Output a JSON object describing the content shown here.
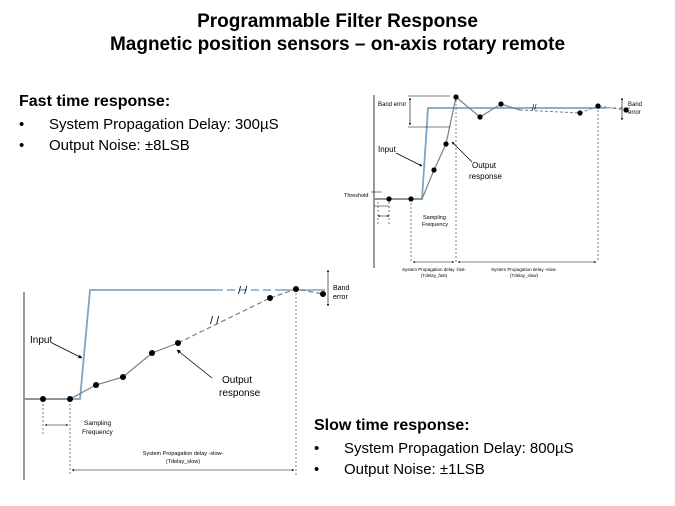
{
  "title_line1": "Programmable Filter Response",
  "title_line2": "Magnetic position sensors – on-axis rotary remote",
  "fast": {
    "heading": "Fast time response:",
    "bullets": [
      "System Propagation Delay: 300µS",
      "Output Noise: ±8LSB"
    ]
  },
  "slow": {
    "heading": "Slow time response:",
    "bullets": [
      "System Propagation Delay: 800µS",
      "Output Noise: ±1LSB"
    ]
  },
  "fast_diagram": {
    "band_error_top": "Band error",
    "band_error_right_1": "Band",
    "band_error_right_2": "error",
    "input": "Input",
    "output_1": "Output",
    "output_2": "response",
    "threshold": "Threshold",
    "sampling_1": "Sampling",
    "sampling_2": "Frequency",
    "delay_fast_1": "System Propagation delay -fast-",
    "delay_fast_2": "(Tdelay_fast)",
    "delay_slow_1": "System Propagation delay -slow-",
    "delay_slow_2": "(Tdelay_slow)",
    "colors": {
      "input": "#7aa6c8",
      "output": "#7f7f7f"
    }
  },
  "slow_diagram": {
    "band_error_1": "Band",
    "band_error_2": "error",
    "input": "Input",
    "output_1": "Output",
    "output_2": "response",
    "sampling_1": "Sampling",
    "sampling_2": "Frequency",
    "delay_slow_1": "System Propagation delay -slow-",
    "delay_slow_2": "(Tdelay_slow)",
    "colors": {
      "input": "#7aa6c8",
      "output": "#7f7f7f"
    }
  }
}
